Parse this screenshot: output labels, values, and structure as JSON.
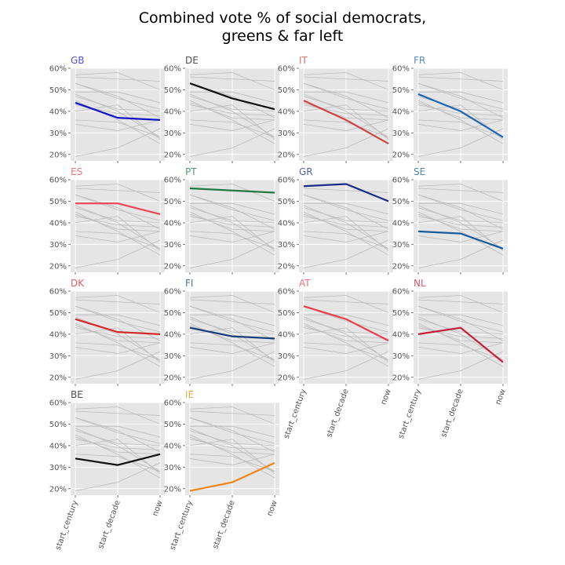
{
  "title_line1": "Combined vote % of social democrats,",
  "title_line2": "greens & far left",
  "chart_data": {
    "type": "line",
    "x": [
      "start_century",
      "start_decade",
      "now"
    ],
    "ylim": [
      17,
      60
    ],
    "yticks": [
      "20%",
      "30%",
      "40%",
      "50%",
      "60%"
    ],
    "ytick_values": [
      20,
      30,
      40,
      50,
      60
    ],
    "grid": true,
    "panels": [
      {
        "name": "GB",
        "color": "#1515c8",
        "values": [
          44,
          37,
          36
        ]
      },
      {
        "name": "DE",
        "color": "#111111",
        "values": [
          53,
          46,
          41
        ]
      },
      {
        "name": "IT",
        "color": "#d04545",
        "values": [
          45,
          36,
          25
        ]
      },
      {
        "name": "FR",
        "color": "#1f66b0",
        "values": [
          48,
          40,
          28
        ]
      },
      {
        "name": "ES",
        "color": "#ee4456",
        "values": [
          49,
          49,
          44
        ]
      },
      {
        "name": "PT",
        "color": "#1e7a40",
        "values": [
          56,
          55,
          54
        ]
      },
      {
        "name": "GR",
        "color": "#1a2b8a",
        "values": [
          57,
          58,
          50
        ]
      },
      {
        "name": "SE",
        "color": "#1a5c9a",
        "values": [
          36,
          35,
          28
        ]
      },
      {
        "name": "DK",
        "color": "#d42a2a",
        "values": [
          47,
          41,
          40
        ]
      },
      {
        "name": "FI",
        "color": "#1a3c7a",
        "values": [
          43,
          39,
          38
        ]
      },
      {
        "name": "AT",
        "color": "#e8404d",
        "values": [
          53,
          47,
          37
        ]
      },
      {
        "name": "NL",
        "color": "#c41e3a",
        "values": [
          40,
          43,
          27
        ]
      },
      {
        "name": "BE",
        "color": "#111111",
        "values": [
          34,
          31,
          36
        ]
      },
      {
        "name": "IE",
        "color": "#f0861a",
        "values": [
          19,
          23,
          32
        ]
      }
    ]
  }
}
